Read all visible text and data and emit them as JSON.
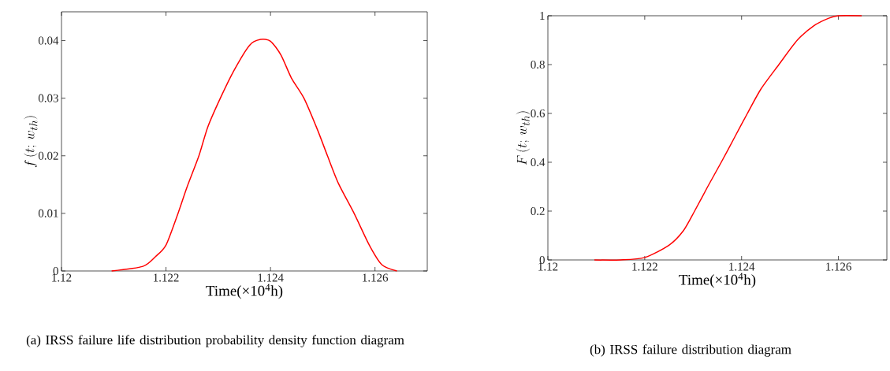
{
  "chart_data": [
    {
      "type": "line",
      "title": "(a) IRSS failure life distribution probability density function diagram",
      "xlabel": "Time(×10$^{4}$h)",
      "ylabel": "f\\,(t;\\, w_{th})",
      "color": "#ff0000",
      "x": [
        1.12096,
        1.12156,
        1.1218,
        1.122,
        1.12223,
        1.1224,
        1.12263,
        1.1228,
        1.12304,
        1.1233,
        1.1236,
        1.12381,
        1.124,
        1.1242,
        1.1244,
        1.12464,
        1.1249,
        1.12509,
        1.1253,
        1.1256,
        1.12589,
        1.12613,
        1.12642
      ],
      "values": [
        0,
        0.0008,
        0.0025,
        0.0045,
        0.01,
        0.0145,
        0.02,
        0.025,
        0.03,
        0.0348,
        0.0392,
        0.0402,
        0.0399,
        0.0375,
        0.0335,
        0.03,
        0.0245,
        0.02,
        0.0152,
        0.01,
        0.0045,
        0.0011,
        0
      ],
      "xlim": [
        1.12,
        1.127
      ],
      "ylim": [
        0,
        0.045
      ],
      "xticks": [
        1.12,
        1.122,
        1.124,
        1.126
      ],
      "yticks": [
        0,
        0.01,
        0.02,
        0.03,
        0.04
      ]
    },
    {
      "type": "line",
      "title": "(b) IRSS failure distribution diagram",
      "xlabel": "Time(×10$^{4}$h)",
      "ylabel": "F\\,(t;\\, w_{th})",
      "color": "#ff0000",
      "x": [
        1.12096,
        1.1215,
        1.122,
        1.1225,
        1.1228,
        1.12303,
        1.1233,
        1.12358,
        1.12385,
        1.12412,
        1.1244,
        1.12477,
        1.12515,
        1.1255,
        1.1258,
        1.126,
        1.12648
      ],
      "values": [
        0,
        0,
        0.01,
        0.06,
        0.12,
        0.2,
        0.3,
        0.4,
        0.5,
        0.6,
        0.7,
        0.8,
        0.9,
        0.96,
        0.99,
        1,
        1
      ],
      "xlim": [
        1.12,
        1.127
      ],
      "ylim": [
        0,
        1
      ],
      "xticks": [
        1.12,
        1.122,
        1.124,
        1.126
      ],
      "yticks": [
        0,
        0.2,
        0.4,
        0.6,
        0.8,
        1
      ]
    }
  ]
}
